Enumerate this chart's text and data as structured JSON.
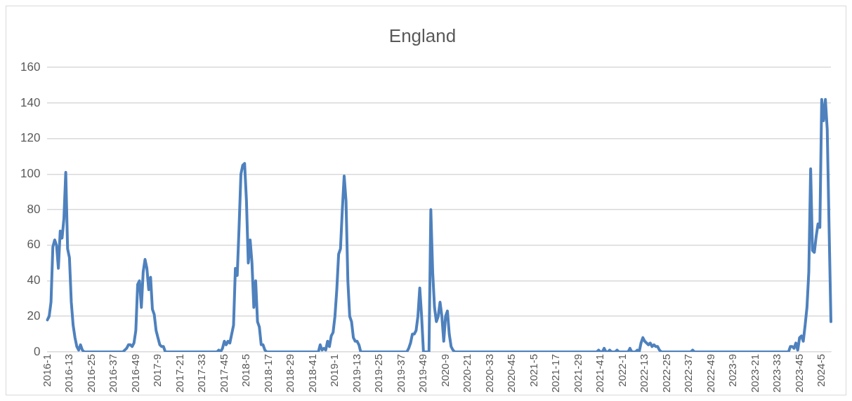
{
  "chart_data": {
    "type": "line",
    "title": "England",
    "categories": [
      "2016-1",
      null,
      null,
      null,
      null,
      null,
      null,
      null,
      null,
      null,
      null,
      null,
      "2016-13",
      null,
      null,
      null,
      null,
      null,
      null,
      null,
      null,
      null,
      null,
      null,
      "2016-25",
      null,
      null,
      null,
      null,
      null,
      null,
      null,
      null,
      null,
      null,
      null,
      "2016-37",
      null,
      null,
      null,
      null,
      null,
      null,
      null,
      null,
      null,
      null,
      null,
      "2016-49",
      null,
      null,
      null,
      null,
      null,
      null,
      null,
      null,
      null,
      null,
      null,
      "2017-9",
      null,
      null,
      null,
      null,
      null,
      null,
      null,
      null,
      null,
      null,
      null,
      "2017-21",
      null,
      null,
      null,
      null,
      null,
      null,
      null,
      null,
      null,
      null,
      null,
      "2017-33",
      null,
      null,
      null,
      null,
      null,
      null,
      null,
      null,
      null,
      null,
      null,
      "2017-45",
      null,
      null,
      null,
      null,
      null,
      null,
      null,
      null,
      null,
      null,
      null,
      "2018-5",
      null,
      null,
      null,
      null,
      null,
      null,
      null,
      null,
      null,
      null,
      null,
      "2018-17",
      null,
      null,
      null,
      null,
      null,
      null,
      null,
      null,
      null,
      null,
      null,
      "2018-29",
      null,
      null,
      null,
      null,
      null,
      null,
      null,
      null,
      null,
      null,
      null,
      "2018-41",
      null,
      null,
      null,
      null,
      null,
      null,
      null,
      null,
      null,
      null,
      null,
      "2019-1",
      null,
      null,
      null,
      null,
      null,
      null,
      null,
      null,
      null,
      null,
      null,
      "2019-13",
      null,
      null,
      null,
      null,
      null,
      null,
      null,
      null,
      null,
      null,
      null,
      "2019-25",
      null,
      null,
      null,
      null,
      null,
      null,
      null,
      null,
      null,
      null,
      null,
      "2019-37",
      null,
      null,
      null,
      null,
      null,
      null,
      null,
      null,
      null,
      null,
      null,
      "2019-49",
      null,
      null,
      null,
      null,
      null,
      null,
      null,
      null,
      null,
      null,
      null,
      "2020-9",
      null,
      null,
      null,
      null,
      null,
      null,
      null,
      null,
      null,
      null,
      null,
      "2020-21",
      null,
      null,
      null,
      null,
      null,
      null,
      null,
      null,
      null,
      null,
      null,
      "2020-33",
      null,
      null,
      null,
      null,
      null,
      null,
      null,
      null,
      null,
      null,
      null,
      "2020-45",
      null,
      null,
      null,
      null,
      null,
      null,
      null,
      null,
      null,
      null,
      null,
      "2021-5",
      null,
      null,
      null,
      null,
      null,
      null,
      null,
      null,
      null,
      null,
      null,
      "2021-17",
      null,
      null,
      null,
      null,
      null,
      null,
      null,
      null,
      null,
      null,
      null,
      "2021-29",
      null,
      null,
      null,
      null,
      null,
      null,
      null,
      null,
      null,
      null,
      null,
      "2021-41",
      null,
      null,
      null,
      null,
      null,
      null,
      null,
      null,
      null,
      null,
      null,
      "2022-1",
      null,
      null,
      null,
      null,
      null,
      null,
      null,
      null,
      null,
      null,
      null,
      "2022-13",
      null,
      null,
      null,
      null,
      null,
      null,
      null,
      null,
      null,
      null,
      null,
      "2022-25",
      null,
      null,
      null,
      null,
      null,
      null,
      null,
      null,
      null,
      null,
      null,
      "2022-37",
      null,
      null,
      null,
      null,
      null,
      null,
      null,
      null,
      null,
      null,
      null,
      "2022-49",
      null,
      null,
      null,
      null,
      null,
      null,
      null,
      null,
      null,
      null,
      null,
      "2023-9",
      null,
      null,
      null,
      null,
      null,
      null,
      null,
      null,
      null,
      null,
      null,
      "2023-21",
      null,
      null,
      null,
      null,
      null,
      null,
      null,
      null,
      null,
      null,
      null,
      "2023-33",
      null,
      null,
      null,
      null,
      null,
      null,
      null,
      null,
      null,
      null,
      null,
      "2023-45",
      null,
      null,
      null,
      null,
      null,
      null,
      null,
      null,
      null,
      null,
      null,
      "2024-5",
      null,
      null,
      null,
      null,
      null
    ],
    "series": [
      {
        "color": "#4e81bd",
        "values": [
          18,
          20,
          28,
          59,
          63,
          60,
          47,
          68,
          64,
          75,
          101,
          58,
          53,
          28,
          15,
          8,
          3,
          1,
          4,
          1,
          0,
          0,
          0,
          0,
          0,
          0,
          0,
          0,
          0,
          0,
          0,
          0,
          0,
          0,
          0,
          0,
          0,
          0,
          0,
          0,
          0,
          0,
          1,
          2,
          4,
          4,
          3,
          5,
          12,
          38,
          40,
          25,
          45,
          52,
          47,
          35,
          42,
          24,
          21,
          12,
          8,
          4,
          3,
          3,
          0,
          0,
          0,
          0,
          0,
          0,
          0,
          0,
          0,
          0,
          0,
          0,
          0,
          0,
          0,
          0,
          0,
          0,
          0,
          0,
          0,
          0,
          0,
          0,
          0,
          0,
          0,
          0,
          0,
          1,
          0,
          2,
          6,
          4,
          6,
          5,
          10,
          15,
          47,
          43,
          70,
          100,
          105,
          106,
          85,
          50,
          63,
          50,
          25,
          40,
          17,
          14,
          4,
          4,
          1,
          0,
          0,
          0,
          0,
          0,
          0,
          0,
          0,
          0,
          0,
          0,
          0,
          0,
          0,
          0,
          0,
          0,
          0,
          0,
          0,
          0,
          0,
          0,
          0,
          0,
          0,
          0,
          0,
          0,
          4,
          1,
          2,
          1,
          6,
          3,
          9,
          11,
          20,
          35,
          55,
          58,
          80,
          99,
          85,
          40,
          20,
          17,
          8,
          6,
          6,
          4,
          0,
          0,
          0,
          0,
          0,
          0,
          0,
          0,
          0,
          0,
          0,
          0,
          0,
          0,
          0,
          0,
          0,
          0,
          0,
          0,
          0,
          0,
          0,
          0,
          0,
          0,
          2,
          5,
          10,
          10,
          12,
          20,
          36,
          20,
          0,
          0,
          0,
          0,
          80,
          45,
          25,
          17,
          20,
          28,
          20,
          6,
          20,
          23,
          10,
          3,
          1,
          0,
          0,
          0,
          0,
          0,
          0,
          0,
          0,
          0,
          0,
          0,
          0,
          0,
          0,
          0,
          0,
          0,
          0,
          0,
          0,
          0,
          0,
          0,
          0,
          0,
          0,
          0,
          0,
          0,
          0,
          0,
          0,
          0,
          0,
          0,
          0,
          0,
          0,
          0,
          0,
          0,
          0,
          0,
          0,
          0,
          0,
          0,
          0,
          0,
          0,
          0,
          0,
          0,
          0,
          0,
          0,
          0,
          0,
          0,
          0,
          0,
          0,
          0,
          0,
          0,
          0,
          0,
          0,
          0,
          0,
          0,
          0,
          0,
          0,
          0,
          0,
          0,
          0,
          1,
          0,
          0,
          2,
          0,
          0,
          1,
          0,
          0,
          0,
          1,
          0,
          0,
          0,
          0,
          0,
          0,
          2,
          0,
          0,
          0,
          1,
          0,
          5,
          8,
          6,
          5,
          4,
          5,
          3,
          4,
          3,
          3,
          1,
          0,
          0,
          0,
          0,
          0,
          0,
          0,
          0,
          0,
          0,
          0,
          0,
          0,
          0,
          0,
          0,
          0,
          1,
          0,
          0,
          0,
          0,
          0,
          0,
          0,
          0,
          0,
          0,
          0,
          0,
          0,
          0,
          0,
          0,
          0,
          0,
          0,
          0,
          0,
          0,
          0,
          0,
          0,
          0,
          0,
          0,
          0,
          0,
          0,
          0,
          0,
          0,
          0,
          0,
          0,
          0,
          0,
          0,
          0,
          0,
          0,
          0,
          0,
          0,
          0,
          0,
          0,
          0,
          0,
          0,
          3,
          3,
          2,
          5,
          1,
          8,
          9,
          6,
          15,
          25,
          45,
          103,
          57,
          56,
          65,
          72,
          70,
          142,
          130,
          142,
          125,
          70,
          17
        ]
      }
    ],
    "ylim": [
      0,
      160
    ],
    "yticks": [
      0,
      20,
      40,
      60,
      80,
      100,
      120,
      140,
      160
    ],
    "grid": "y",
    "legend": false,
    "marker": "none",
    "line_style": "solid"
  }
}
